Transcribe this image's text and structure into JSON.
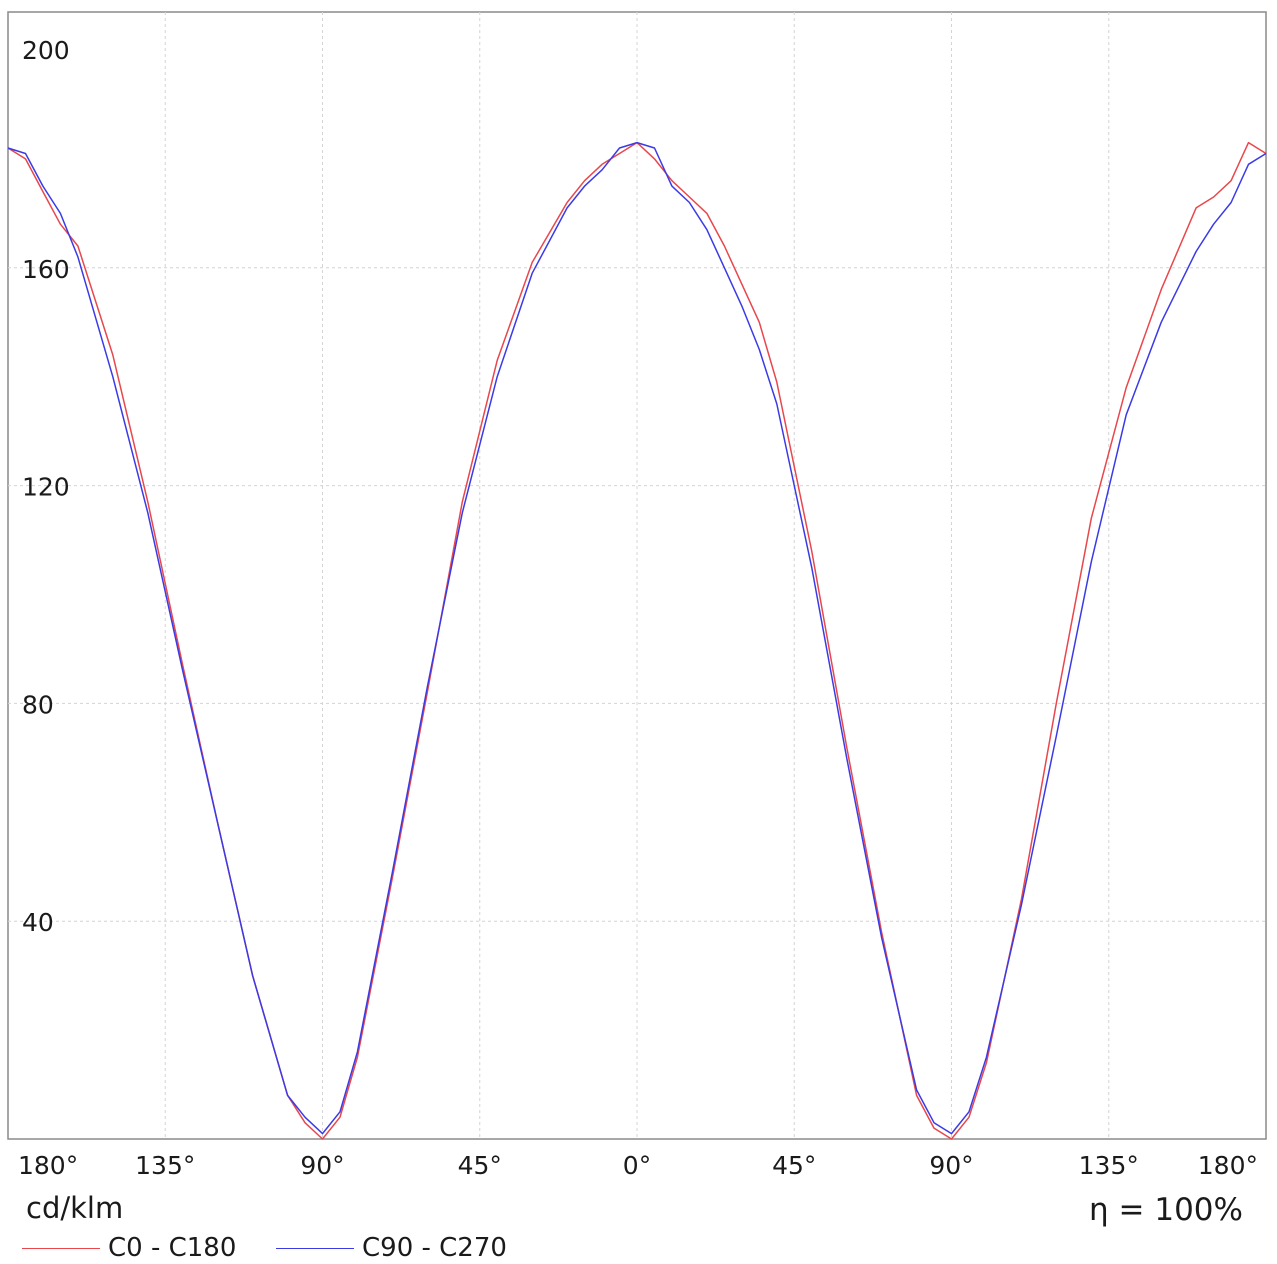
{
  "chart_data": {
    "type": "line",
    "title": "",
    "xlabel": "",
    "ylabel": "cd/klm",
    "unit_label": "cd/klm",
    "efficiency_label": "η = 100%",
    "x_range": [
      -180,
      180
    ],
    "ylim": [
      0,
      200
    ],
    "y_ticks": [
      40,
      80,
      120,
      160,
      200
    ],
    "x_ticks": [
      {
        "value": -180,
        "label": "180°"
      },
      {
        "value": -135,
        "label": "135°"
      },
      {
        "value": -90,
        "label": "90°"
      },
      {
        "value": -45,
        "label": "45°"
      },
      {
        "value": 0,
        "label": "0°"
      },
      {
        "value": 45,
        "label": "45°"
      },
      {
        "value": 90,
        "label": "90°"
      },
      {
        "value": 135,
        "label": "135°"
      },
      {
        "value": 180,
        "label": "180°"
      }
    ],
    "grid": true,
    "legend_position": "bottom-left",
    "series": [
      {
        "name": "C0 - C180",
        "color": "#e8474c",
        "x": [
          -180,
          -175,
          -170,
          -165,
          -160,
          -150,
          -140,
          -130,
          -120,
          -110,
          -100,
          -95,
          -90,
          -85,
          -80,
          -70,
          -60,
          -50,
          -40,
          -30,
          -20,
          -15,
          -10,
          -5,
          0,
          5,
          10,
          15,
          20,
          25,
          30,
          35,
          40,
          50,
          60,
          70,
          80,
          85,
          90,
          95,
          100,
          110,
          120,
          130,
          140,
          150,
          160,
          165,
          170,
          175,
          180
        ],
        "y": [
          182,
          180,
          174,
          168,
          164,
          144,
          117,
          87,
          58,
          30,
          8,
          3,
          0,
          4,
          15,
          48,
          82,
          117,
          143,
          161,
          172,
          176,
          179,
          181,
          183,
          180,
          176,
          173,
          170,
          164,
          157,
          150,
          139,
          108,
          72,
          38,
          8,
          2,
          0,
          4,
          14,
          44,
          80,
          114,
          138,
          156,
          171,
          173,
          176,
          183,
          181
        ]
      },
      {
        "name": "C90 - C270",
        "color": "#3b3be6",
        "x": [
          -180,
          -175,
          -170,
          -165,
          -160,
          -150,
          -140,
          -130,
          -120,
          -110,
          -100,
          -95,
          -90,
          -85,
          -80,
          -70,
          -60,
          -50,
          -40,
          -30,
          -20,
          -15,
          -10,
          -5,
          0,
          5,
          10,
          15,
          20,
          25,
          30,
          35,
          40,
          50,
          60,
          70,
          80,
          85,
          90,
          95,
          100,
          110,
          120,
          130,
          140,
          150,
          160,
          165,
          170,
          175,
          180
        ],
        "y": [
          182,
          181,
          175,
          170,
          162,
          140,
          115,
          86,
          58,
          30,
          8,
          4,
          1,
          5,
          16,
          49,
          83,
          115,
          140,
          159,
          171,
          175,
          178,
          182,
          183,
          182,
          175,
          172,
          167,
          160,
          153,
          145,
          135,
          105,
          70,
          37,
          9,
          3,
          1,
          5,
          15,
          43,
          74,
          106,
          133,
          150,
          163,
          168,
          172,
          179,
          181
        ]
      }
    ]
  }
}
